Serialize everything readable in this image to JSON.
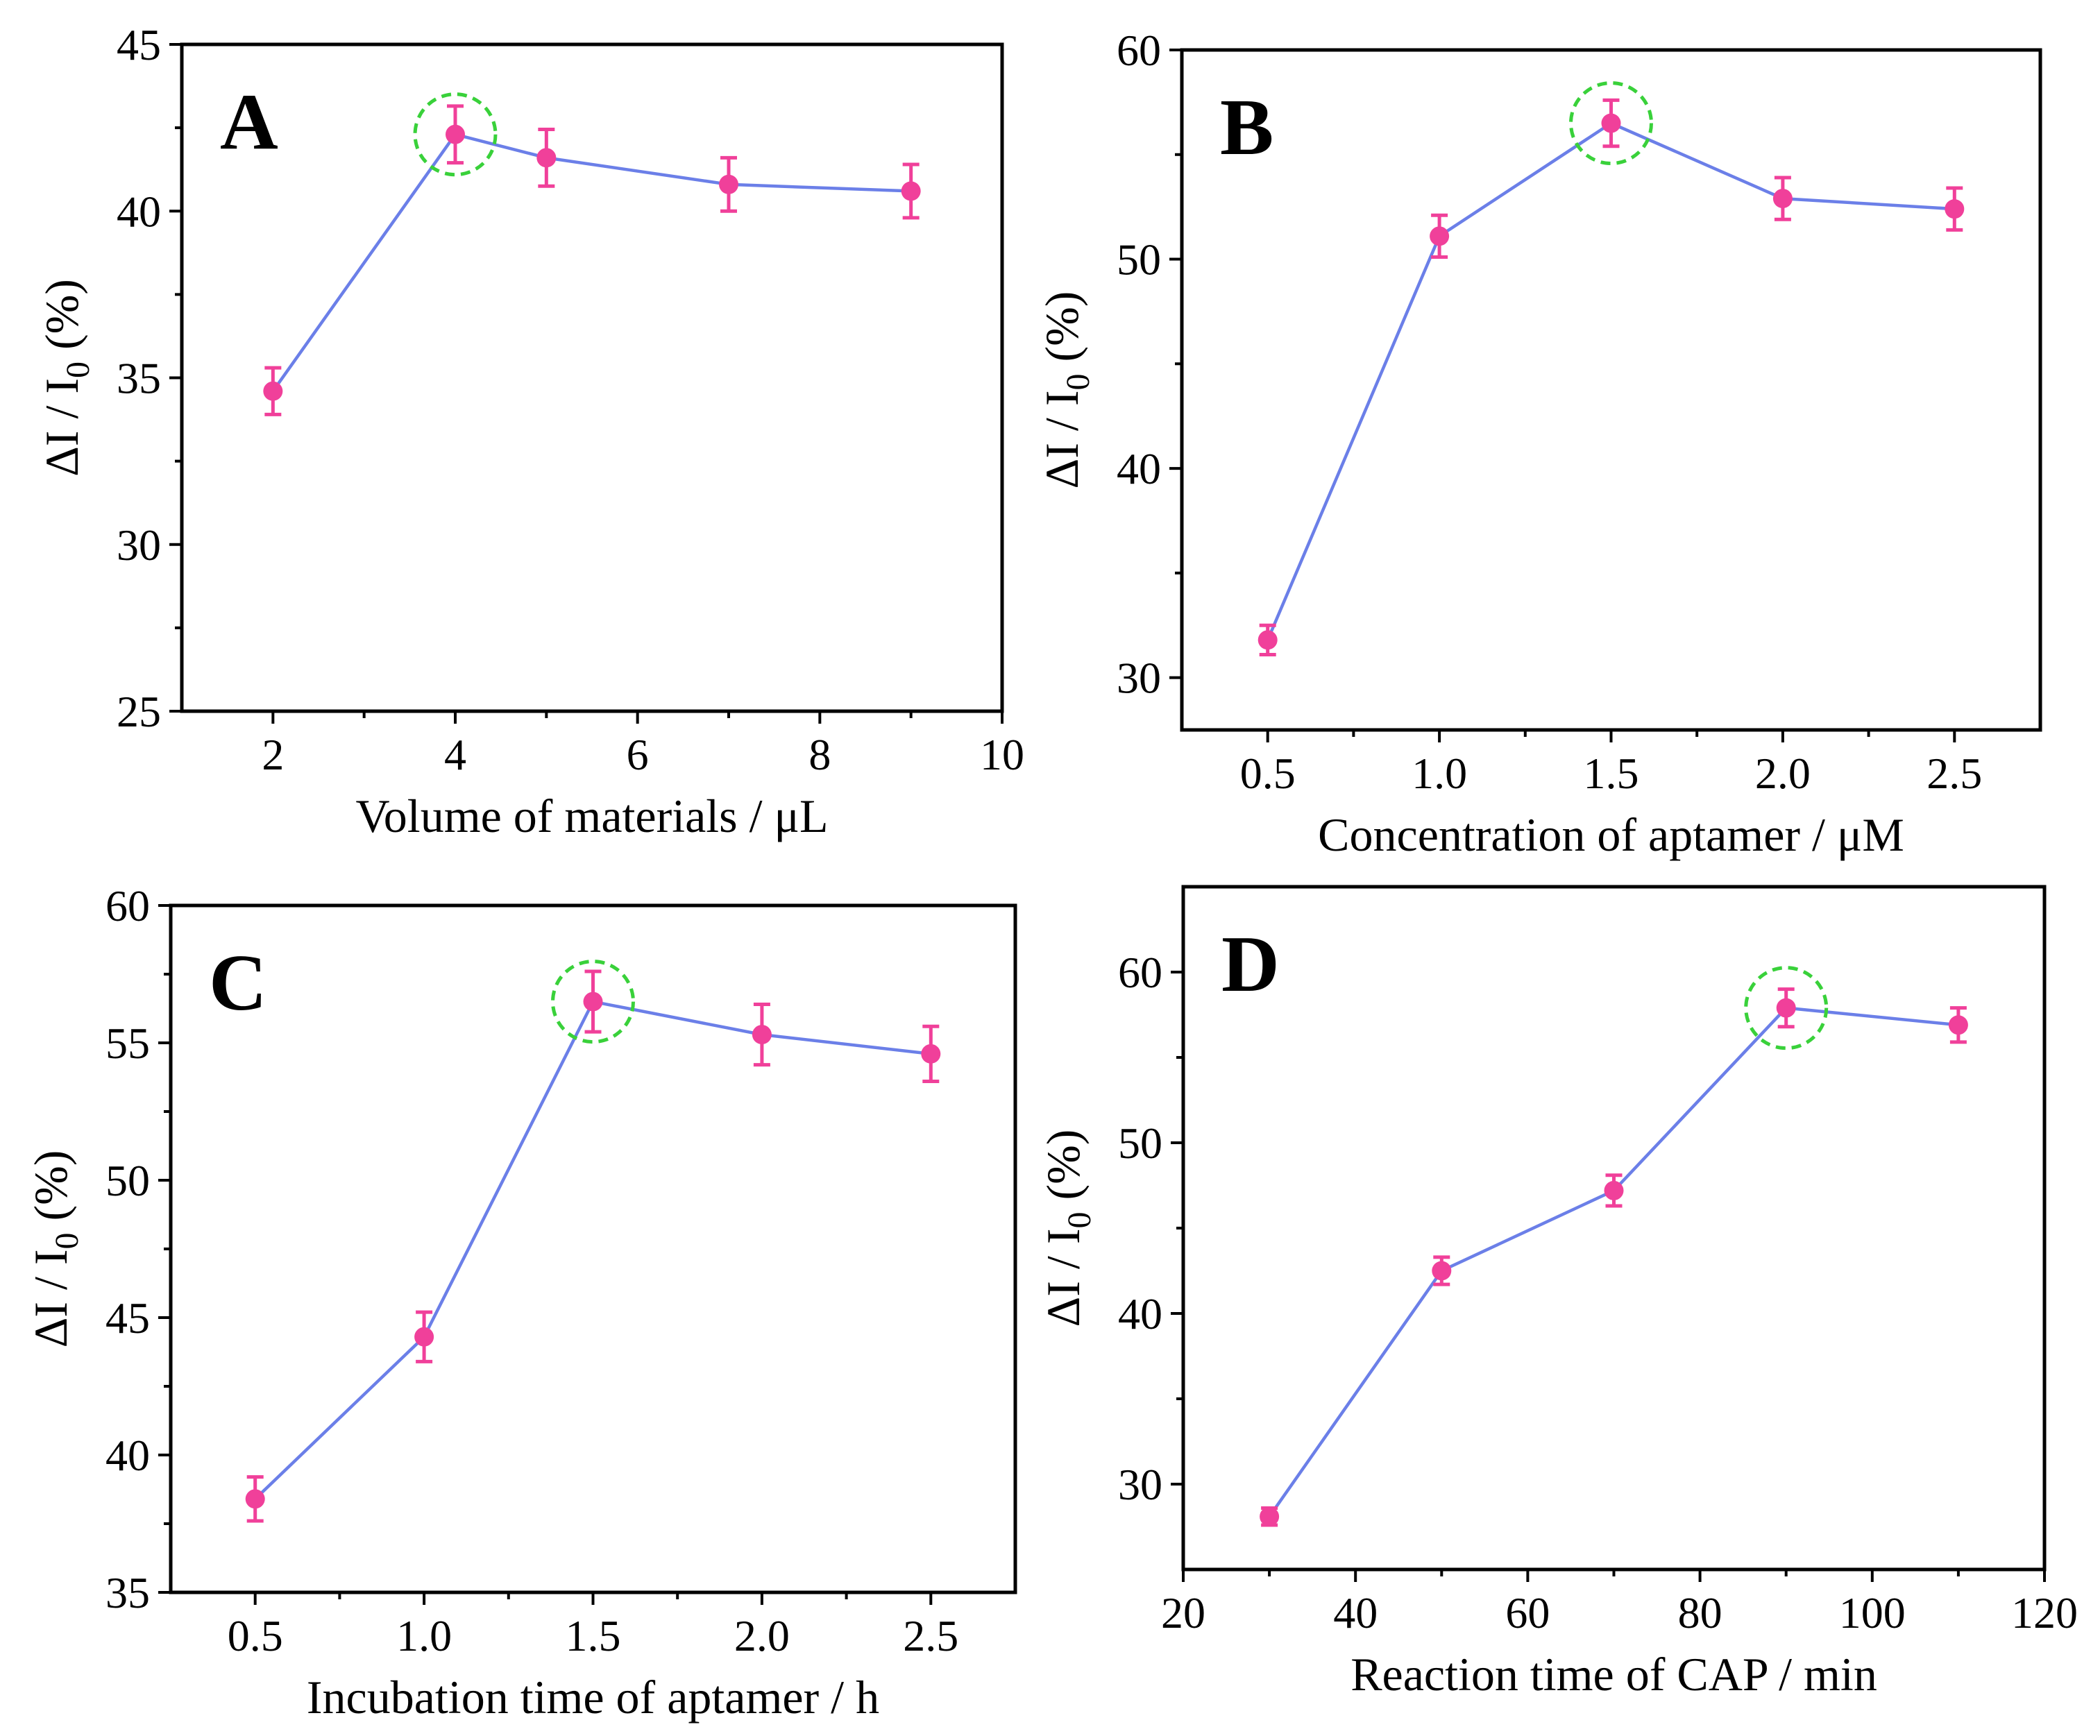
{
  "colors": {
    "line": "#6b7fe8",
    "marker": "#f0409a",
    "highlight": "#39d13a"
  },
  "chart_data": [
    {
      "type": "line",
      "panel": "A",
      "xlabel": "Volume of  materials / μL",
      "ylabel_parts": {
        "prefix": "ΔI  /  I",
        "subscript": "0",
        "suffix": " (%)"
      },
      "xlim": [
        1,
        10
      ],
      "ylim": [
        25,
        45
      ],
      "xticks": [
        2,
        4,
        6,
        8,
        10
      ],
      "xtick_labels": [
        "2",
        "4",
        "6",
        "8",
        "10"
      ],
      "yticks": [
        25,
        30,
        35,
        40,
        45
      ],
      "ytick_labels": [
        "25",
        "30",
        "35",
        "40",
        "45"
      ],
      "x": [
        2,
        4,
        5,
        7,
        9
      ],
      "y": [
        34.6,
        42.3,
        41.6,
        40.8,
        40.6
      ],
      "yerr": [
        0.7,
        0.85,
        0.85,
        0.8,
        0.8
      ],
      "highlight_index": 1
    },
    {
      "type": "line",
      "panel": "B",
      "xlabel": "Concentration of aptamer / μM",
      "ylabel_parts": {
        "prefix": "ΔI  /  I",
        "subscript": "0",
        "suffix": " (%)"
      },
      "xlim": [
        0.25,
        2.75
      ],
      "ylim": [
        27.5,
        60
      ],
      "xticks": [
        0.5,
        1.0,
        1.5,
        2.0,
        2.5
      ],
      "xtick_labels": [
        "0.5",
        "1.0",
        "1.5",
        "2.0",
        "2.5"
      ],
      "yticks": [
        30,
        40,
        50,
        60
      ],
      "ytick_labels": [
        "30",
        "40",
        "50",
        "60"
      ],
      "x": [
        0.5,
        1.0,
        1.5,
        2.0,
        2.5
      ],
      "y": [
        31.8,
        51.1,
        56.5,
        52.9,
        52.4
      ],
      "yerr": [
        0.7,
        1.0,
        1.1,
        1.0,
        1.0
      ],
      "highlight_index": 2
    },
    {
      "type": "line",
      "panel": "C",
      "xlabel": "Incubation time of aptamer / h",
      "ylabel_parts": {
        "prefix": "ΔI  /  I",
        "subscript": "0",
        "suffix": " (%)"
      },
      "xlim": [
        0.25,
        2.75
      ],
      "ylim": [
        35,
        60
      ],
      "xticks": [
        0.5,
        1.0,
        1.5,
        2.0,
        2.5
      ],
      "xtick_labels": [
        "0.5",
        "1.0",
        "1.5",
        "2.0",
        "2.5"
      ],
      "yticks": [
        35,
        40,
        45,
        50,
        55,
        60
      ],
      "ytick_labels": [
        "35",
        "40",
        "45",
        "50",
        "55",
        "60"
      ],
      "x": [
        0.5,
        1.0,
        1.5,
        2.0,
        2.5
      ],
      "y": [
        38.4,
        44.3,
        56.5,
        55.3,
        54.6
      ],
      "yerr": [
        0.8,
        0.9,
        1.1,
        1.1,
        1.0
      ],
      "highlight_index": 2
    },
    {
      "type": "line",
      "panel": "D",
      "xlabel": "Reaction time of CAP / min",
      "ylabel_parts": {
        "prefix": "ΔI  /  I",
        "subscript": "0",
        "suffix": " (%)"
      },
      "xlim": [
        20,
        120
      ],
      "ylim": [
        25,
        65
      ],
      "xticks": [
        20,
        40,
        60,
        80,
        100,
        120
      ],
      "xtick_labels": [
        "20",
        "40",
        "60",
        "80",
        "100",
        "120"
      ],
      "yticks": [
        30,
        40,
        50,
        60
      ],
      "ytick_labels": [
        "30",
        "40",
        "50",
        "60"
      ],
      "x": [
        30,
        50,
        70,
        90,
        110
      ],
      "y": [
        28.1,
        42.5,
        47.2,
        57.9,
        56.9
      ],
      "yerr": [
        0.5,
        0.8,
        0.9,
        1.1,
        1.0
      ],
      "highlight_index": 3
    }
  ]
}
